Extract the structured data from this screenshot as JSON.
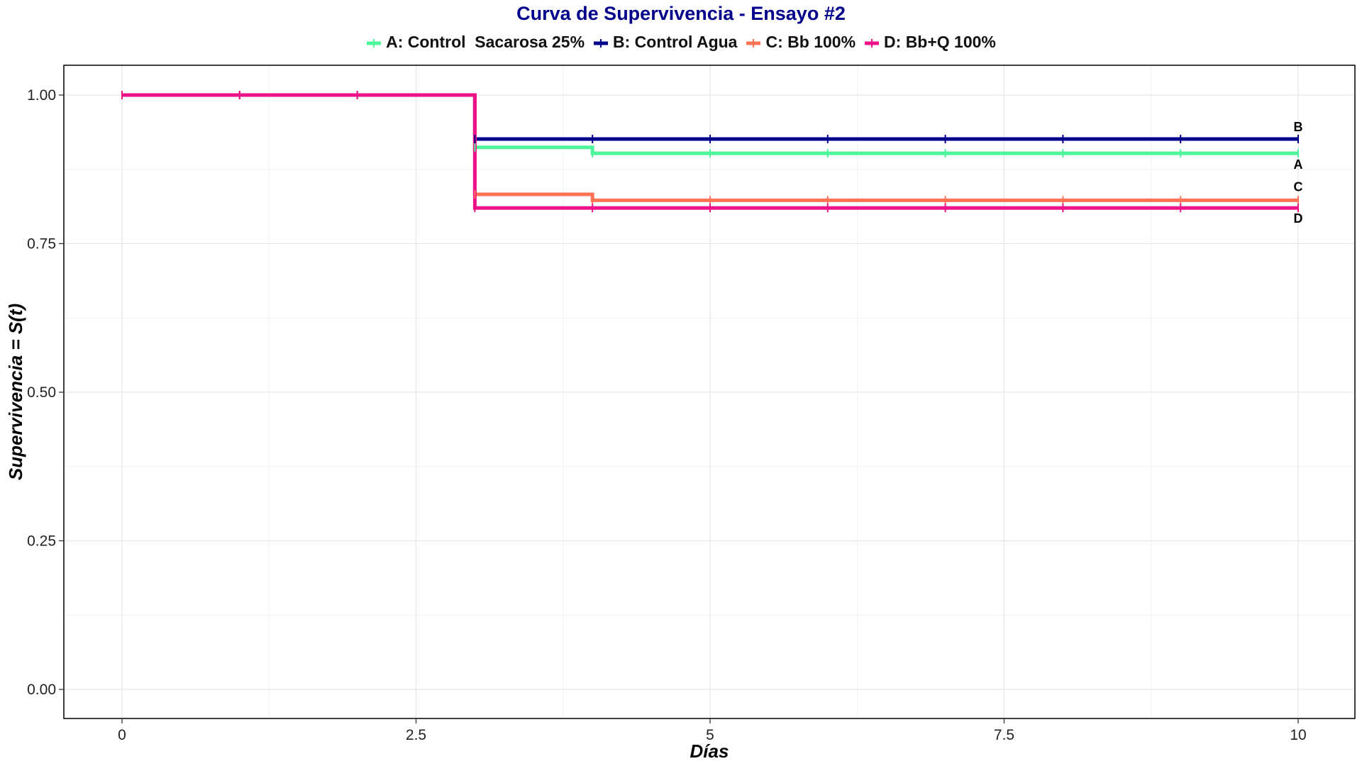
{
  "chart_data": {
    "type": "line",
    "step": true,
    "title": "Curva de Supervivencia - Ensayo #2",
    "xlabel": "Días",
    "ylabel": "Supervivencia = S(t)",
    "xlim": [
      0,
      10
    ],
    "ylim": [
      0,
      1
    ],
    "x_ticks": [
      0,
      2.5,
      5,
      7.5,
      10
    ],
    "x_tick_labels": [
      "0",
      "2.5",
      "5",
      "7.5",
      "10"
    ],
    "y_ticks": [
      0,
      0.25,
      0.5,
      0.75,
      1
    ],
    "y_tick_labels": [
      "0.00",
      "0.25",
      "0.50",
      "0.75",
      "1.00"
    ],
    "grid": true,
    "legend_position": "top",
    "censor_times": [
      0,
      1,
      2,
      3,
      4,
      5,
      6,
      7,
      8,
      9,
      10
    ],
    "series": [
      {
        "name": "A: Control  Sacarosa 25%",
        "end_label": "A",
        "color": "#4DF59B",
        "x": [
          0,
          3,
          4,
          10
        ],
        "values": [
          1.0,
          0.912,
          0.902,
          0.902
        ]
      },
      {
        "name": "B: Control Agua",
        "end_label": "B",
        "color": "#00008B",
        "x": [
          0,
          3,
          10
        ],
        "values": [
          1.0,
          0.926,
          0.926
        ]
      },
      {
        "name": "C: Bb 100%",
        "end_label": "C",
        "color": "#FF7256",
        "x": [
          0,
          3,
          4,
          10
        ],
        "values": [
          1.0,
          0.833,
          0.823,
          0.823
        ]
      },
      {
        "name": "D: Bb+Q 100%",
        "end_label": "D",
        "color": "#EE1289",
        "x": [
          0,
          3,
          10
        ],
        "values": [
          1.0,
          0.81,
          0.81
        ]
      }
    ]
  }
}
